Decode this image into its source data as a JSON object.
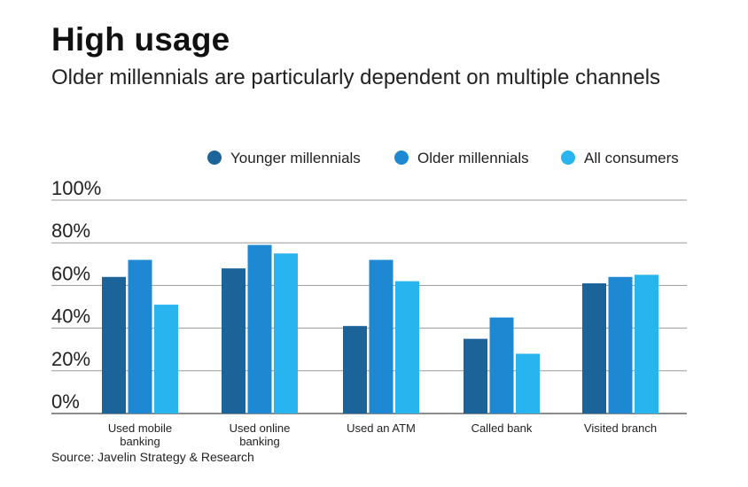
{
  "title": "High usage",
  "subtitle": "Older millennials are particularly dependent on multiple channels",
  "source": "Source: Javelin Strategy & Research",
  "chart_data": {
    "type": "bar",
    "categories": [
      "Used mobile banking",
      "Used online banking",
      "Used an ATM",
      "Called bank",
      "Visited branch"
    ],
    "category_lines": [
      [
        "Used mobile",
        "banking"
      ],
      [
        "Used online",
        "banking"
      ],
      [
        "Used an ATM"
      ],
      [
        "Called bank"
      ],
      [
        "Visited branch"
      ]
    ],
    "series": [
      {
        "name": "Younger millennials",
        "color": "#1c6399",
        "values": [
          64,
          68,
          41,
          35,
          61
        ]
      },
      {
        "name": "Older millennials",
        "color": "#1e88d3",
        "values": [
          72,
          79,
          72,
          45,
          64
        ]
      },
      {
        "name": "All consumers",
        "color": "#27b4ef",
        "values": [
          51,
          75,
          62,
          28,
          65
        ]
      }
    ],
    "ylim": [
      0,
      100
    ],
    "yticks": [
      0,
      20,
      40,
      60,
      80,
      100
    ],
    "ytick_labels": [
      "0%",
      "20%",
      "40%",
      "60%",
      "80%",
      "100%"
    ],
    "legend_position": "top-right",
    "grid": true
  }
}
